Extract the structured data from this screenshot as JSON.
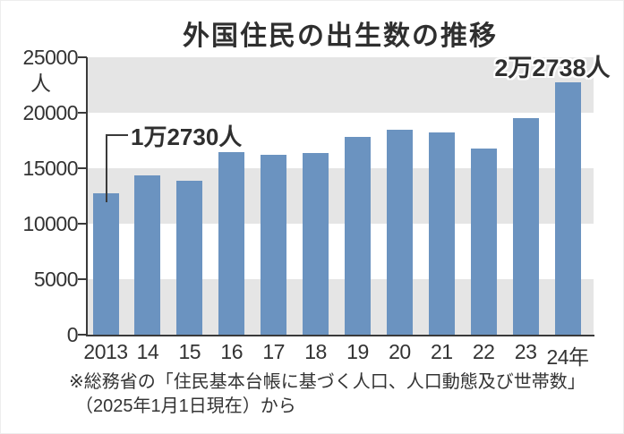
{
  "title": "外国住民の出生数の推移",
  "chart_data": {
    "type": "bar",
    "title": "外国住民の出生数の推移",
    "categories": [
      "2013",
      "14",
      "15",
      "16",
      "17",
      "18",
      "19",
      "20",
      "21",
      "22",
      "23",
      "24年"
    ],
    "values": [
      12730,
      14350,
      13900,
      16450,
      16200,
      16400,
      17800,
      18470,
      18200,
      16750,
      19550,
      22738
    ],
    "ylim": [
      0,
      25000
    ],
    "ytick_step": 5000,
    "ytick_labels": [
      "0",
      "5000",
      "10000",
      "15000",
      "20000",
      "25000"
    ],
    "unit_label": "人",
    "grid": "banded",
    "legend": "none",
    "bar_color": "#6b93c0",
    "band_color": "#e5e5e5",
    "axis_color": "#3a3a3a",
    "text_color": "#333333",
    "annotations": [
      {
        "text": "1万2730人",
        "bar_index": 0,
        "value": 12730,
        "placement": "leader-left"
      },
      {
        "text": "2万2738人",
        "bar_index": 11,
        "value": 22738,
        "placement": "above-right"
      }
    ]
  },
  "source": {
    "line1": "※総務省の「住民基本台帳に基づく人口、人口動態及び世帯数」",
    "line2": "（2025年1月1日現在）から"
  }
}
